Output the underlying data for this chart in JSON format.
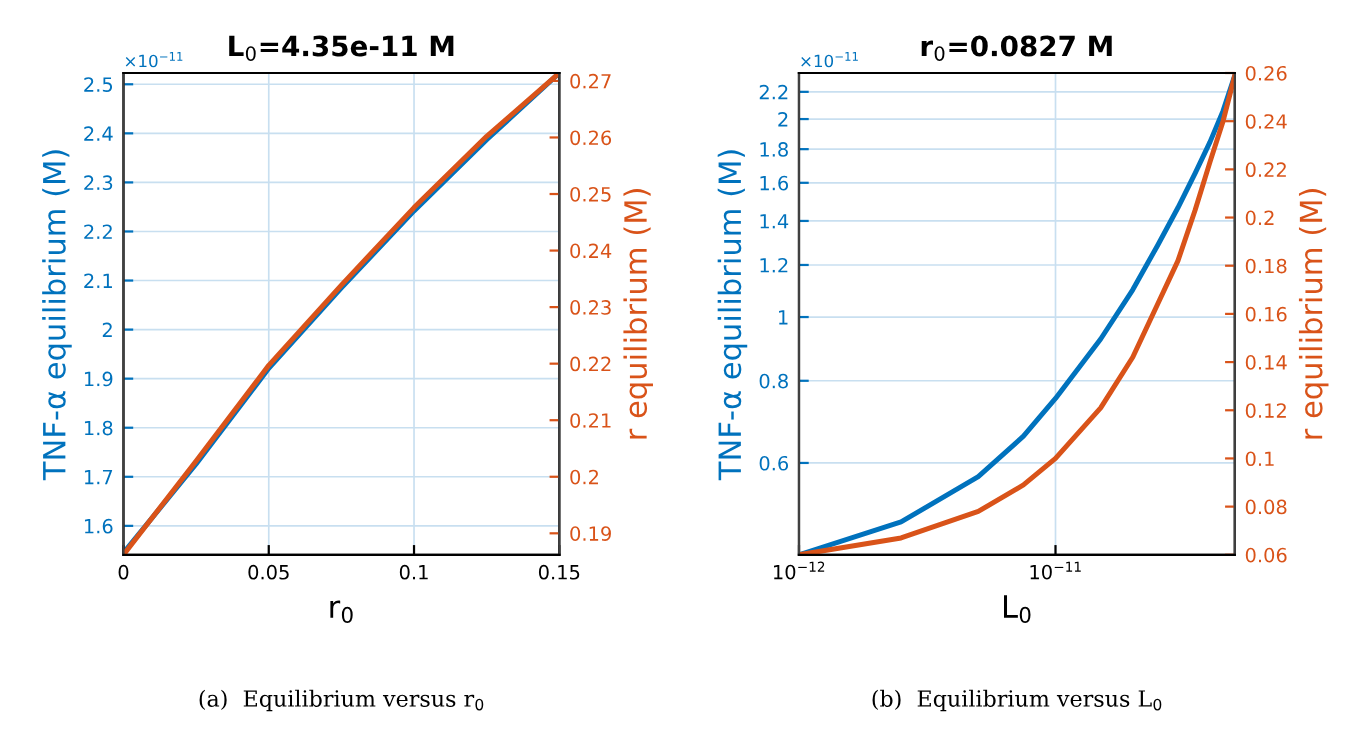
{
  "chart_data": [
    {
      "type": "line",
      "title": "L$_{0}$=4.35e-11 M",
      "xlabel": "r$_{0}$",
      "ylabel": "TNF-α equilibrium (M)",
      "y2label": "r equilibrium (M)",
      "annotations": [
        "×10$^{−11}$",
        "(a)  Equilibrium versus r$_{0}$"
      ],
      "grid": true,
      "xlim": [
        0,
        0.15
      ],
      "xticks": [
        0,
        0.05,
        0.1,
        0.15
      ],
      "ylim": [
        1.541,
        2.523
      ],
      "yticks": [
        1.6,
        1.7,
        1.8,
        1.9,
        2,
        2.1,
        2.2,
        2.3,
        2.4,
        2.5
      ],
      "y2lim": [
        0.1862,
        0.2714
      ],
      "y2ticks": [
        0.19,
        0.2,
        0.21,
        0.22,
        0.23,
        0.24,
        0.25,
        0.26,
        0.27
      ],
      "x": [
        0,
        0.025,
        0.05,
        0.075,
        0.1,
        0.125,
        0.15
      ],
      "series": [
        {
          "color": "#0072bd",
          "values": [
            1.545,
            1.726,
            1.921,
            2.085,
            2.242,
            2.387,
            2.523
          ]
        },
        {
          "color": "#d95319",
          "axis": "y2",
          "values": [
            0.1862,
            0.2028,
            0.2197,
            0.2339,
            0.2476,
            0.2602,
            0.2714
          ]
        }
      ]
    },
    {
      "type": "line",
      "title": "r$_{0}$=0.0827 M",
      "xlabel": "L$_{0}$",
      "ylabel": "TNF-α equilibrium (M)",
      "y2label": "r equilibrium (M)",
      "annotations": [
        "×10$^{−11}$",
        "(b)  Equilibrium versus L$_{0}$"
      ],
      "grid": true,
      "log": "xy",
      "xlim": [
        1e-12,
        5e-11
      ],
      "xticks": [
        {
          "value": 1e-12,
          "label": "10$^{−12}$"
        },
        {
          "value": 1e-11,
          "label": "10$^{−11}$"
        }
      ],
      "ylim": [
        0.435,
        2.35
      ],
      "yticks": [
        0.6,
        0.8,
        1,
        1.2,
        1.4,
        1.6,
        1.8,
        2,
        2.2
      ],
      "y2lim": [
        0.06,
        0.26
      ],
      "y2ticks": [
        0.06,
        0.08,
        0.1,
        0.12,
        0.14,
        0.16,
        0.18,
        0.2,
        0.22,
        0.24,
        0.26
      ],
      "x": [
        1e-12,
        2.5e-12,
        5e-12,
        7.5e-12,
        1e-11,
        1.5e-11,
        2e-11,
        2.5e-11,
        3e-11,
        3.5e-11,
        4e-11,
        4.5e-11,
        5e-11
      ],
      "series": [
        {
          "color": "#0072bd",
          "values": [
            0.435,
            0.488,
            0.572,
            0.659,
            0.752,
            0.926,
            1.1,
            1.285,
            1.466,
            1.653,
            1.845,
            2.058,
            2.33
          ]
        },
        {
          "color": "#d95319",
          "axis": "y2",
          "values": [
            0.06,
            0.067,
            0.078,
            0.089,
            0.1,
            0.121,
            0.142,
            0.164,
            0.182,
            0.203,
            0.223,
            0.24,
            0.259
          ]
        }
      ]
    }
  ]
}
